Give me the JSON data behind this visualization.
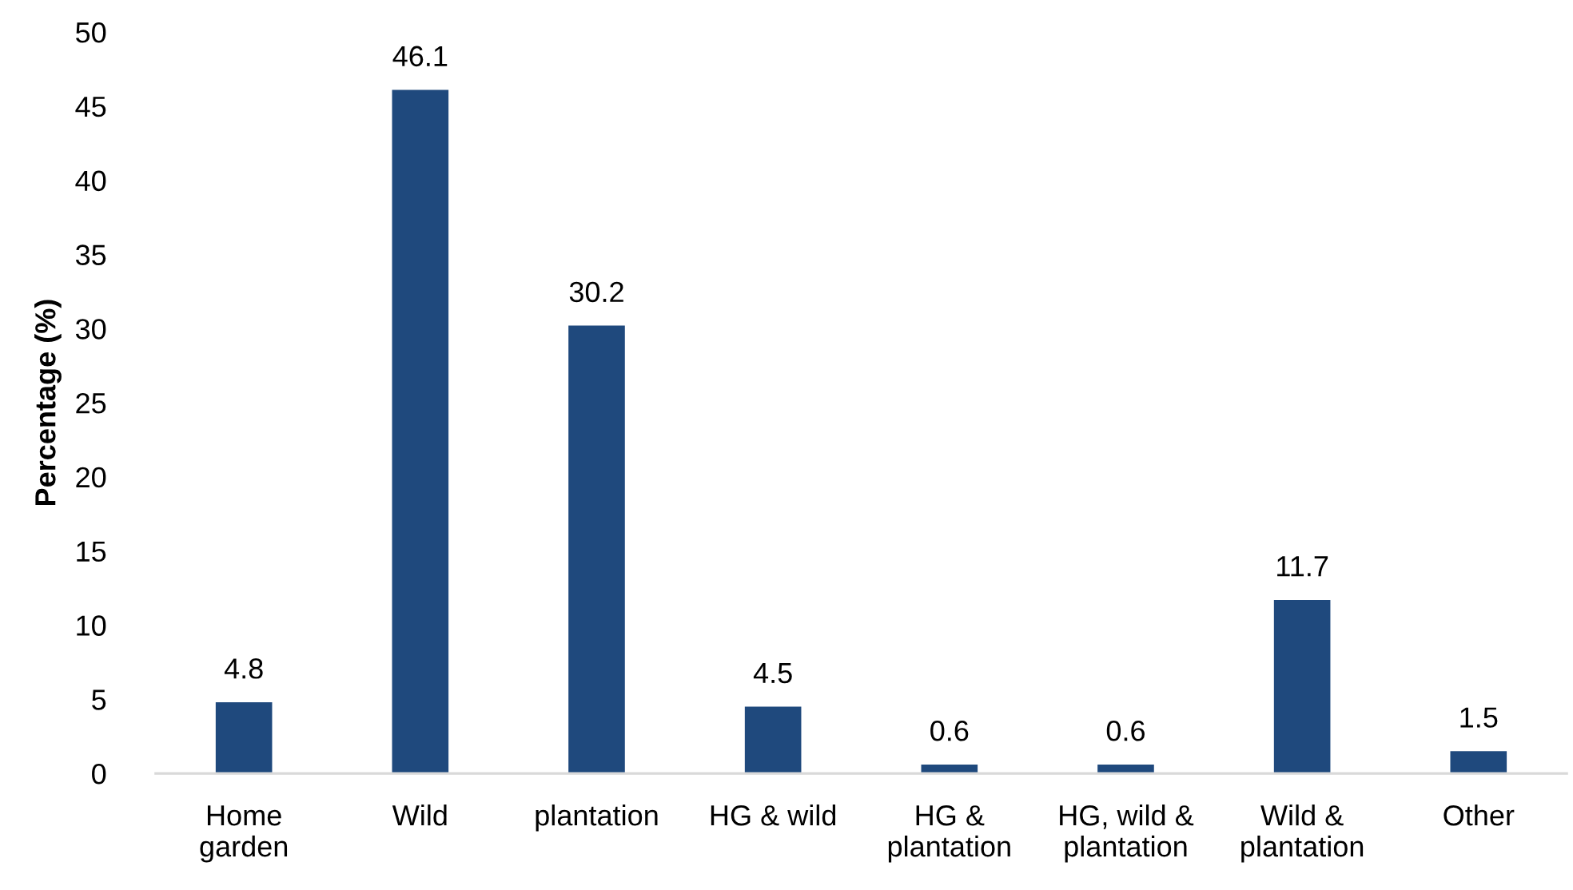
{
  "chart_data": {
    "type": "bar",
    "ylabel": "Percentage (%)",
    "categories": [
      "Home\ngarden",
      "Wild",
      "plantation",
      "HG & wild",
      "HG &\nplantation",
      "HG, wild &\nplantation",
      "Wild &\nplantation",
      "Other"
    ],
    "values": [
      4.8,
      46.1,
      30.2,
      4.5,
      0.6,
      0.6,
      11.7,
      1.5
    ],
    "color": "#1f497d",
    "ylim": [
      0,
      50
    ],
    "yticks": [
      0,
      5,
      10,
      15,
      20,
      25,
      30,
      35,
      40,
      45,
      50
    ],
    "data_labels": true,
    "grid": false,
    "legend": false
  }
}
